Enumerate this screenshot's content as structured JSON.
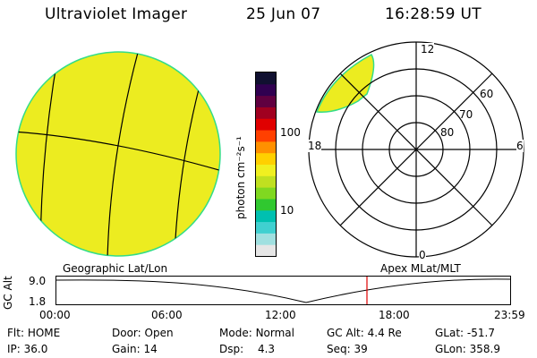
{
  "header": {
    "title": "Ultraviolet Imager",
    "date": "25 Jun 07",
    "time": "16:28:59 UT"
  },
  "colorbar": {
    "label": "photon cm⁻²s⁻¹",
    "tick_100": "100",
    "tick_10": "10",
    "colors": [
      "#e6e6e6",
      "#a0e0e0",
      "#40d0d0",
      "#00c0b0",
      "#30c830",
      "#80d820",
      "#c0e020",
      "#f0f020",
      "#ffd000",
      "#ff9000",
      "#ff4000",
      "#e00000",
      "#a00020",
      "#600040",
      "#300050",
      "#101030"
    ]
  },
  "image": {
    "fill_color": "#ecec20",
    "edge_color": "#33dd88"
  },
  "polar": {
    "lat_labels": [
      "60",
      "70",
      "80"
    ],
    "mlt_labels": {
      "top": "12",
      "left": "18",
      "right": "6",
      "bottom": "0"
    }
  },
  "panel_labels": {
    "left": "Geographic Lat/Lon",
    "right": "Apex  MLat/MLT"
  },
  "altitude_plot": {
    "ylabel": "GC Alt",
    "y_top": "9.0",
    "y_bottom": "1.8",
    "x_ticks": [
      "00:00",
      "06:00",
      "12:00",
      "18:00",
      "23:59"
    ],
    "marker_color": "#e00000"
  },
  "info_rows": [
    [
      {
        "key": "Flt:",
        "val": "HOME"
      },
      {
        "key": "Door:",
        "val": "Open"
      },
      {
        "key": "Mode:",
        "val": "Normal"
      },
      {
        "key": "GC Alt:",
        "val": "4.4 Re"
      },
      {
        "key": "GLat:",
        "val": "-51.7"
      }
    ],
    [
      {
        "key": "IP:",
        "val": "36.0"
      },
      {
        "key": "Gain:",
        "val": "14"
      },
      {
        "key": "Dsp:",
        "val": "4.3"
      },
      {
        "key": "Seq:",
        "val": "39"
      },
      {
        "key": "GLon:",
        "val": "358.9"
      }
    ]
  ]
}
